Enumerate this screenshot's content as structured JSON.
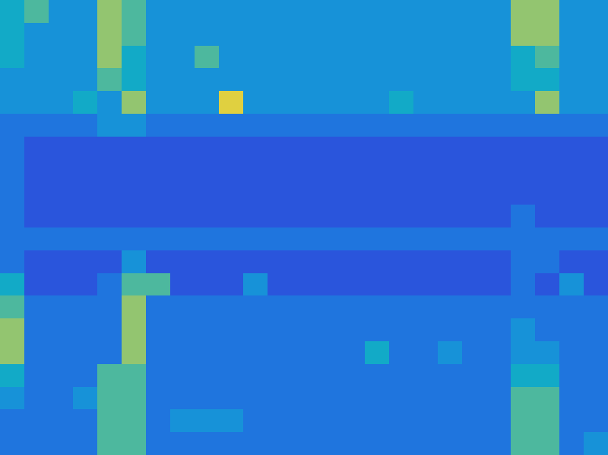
{
  "chart_data": {
    "type": "heatmap",
    "tick_labels": false,
    "grid": false,
    "cells": [
      [
        5,
        6,
        4,
        4,
        7,
        6,
        4,
        4,
        4,
        4,
        4,
        4,
        4,
        4,
        4,
        4,
        4,
        4,
        4,
        4,
        4,
        7,
        7,
        4,
        4
      ],
      [
        5,
        4,
        4,
        4,
        7,
        6,
        4,
        4,
        4,
        4,
        4,
        4,
        4,
        4,
        4,
        4,
        4,
        4,
        4,
        4,
        4,
        7,
        7,
        4,
        4
      ],
      [
        5,
        4,
        4,
        4,
        7,
        5,
        4,
        4,
        6,
        4,
        4,
        4,
        4,
        4,
        4,
        4,
        4,
        4,
        4,
        4,
        4,
        5,
        6,
        4,
        4
      ],
      [
        4,
        4,
        4,
        4,
        6,
        5,
        4,
        4,
        4,
        4,
        4,
        4,
        4,
        4,
        4,
        4,
        4,
        4,
        4,
        4,
        4,
        5,
        5,
        4,
        4
      ],
      [
        4,
        4,
        4,
        5,
        4,
        7,
        4,
        4,
        4,
        8,
        4,
        4,
        4,
        4,
        4,
        4,
        5,
        4,
        4,
        4,
        4,
        4,
        7,
        4,
        4
      ],
      [
        3,
        3,
        3,
        3,
        4,
        4,
        3,
        3,
        3,
        3,
        3,
        3,
        3,
        3,
        3,
        3,
        3,
        3,
        3,
        3,
        3,
        3,
        3,
        3,
        3
      ],
      [
        3,
        2,
        2,
        2,
        2,
        2,
        2,
        2,
        2,
        2,
        2,
        2,
        2,
        2,
        2,
        2,
        2,
        2,
        2,
        2,
        2,
        2,
        2,
        2,
        2
      ],
      [
        3,
        2,
        2,
        2,
        2,
        2,
        2,
        2,
        2,
        2,
        2,
        2,
        2,
        2,
        2,
        2,
        2,
        2,
        2,
        2,
        2,
        2,
        2,
        2,
        2
      ],
      [
        3,
        2,
        2,
        2,
        2,
        2,
        2,
        2,
        2,
        2,
        2,
        2,
        2,
        2,
        2,
        2,
        2,
        2,
        2,
        2,
        2,
        2,
        2,
        2,
        2
      ],
      [
        3,
        2,
        2,
        2,
        2,
        2,
        2,
        2,
        2,
        2,
        2,
        2,
        2,
        2,
        2,
        2,
        2,
        2,
        2,
        2,
        2,
        3,
        2,
        2,
        2
      ],
      [
        3,
        3,
        3,
        3,
        3,
        3,
        3,
        3,
        3,
        3,
        3,
        3,
        3,
        3,
        3,
        3,
        3,
        3,
        3,
        3,
        3,
        3,
        3,
        3,
        3
      ],
      [
        3,
        2,
        2,
        2,
        2,
        4,
        2,
        2,
        2,
        2,
        2,
        2,
        2,
        2,
        2,
        2,
        2,
        2,
        2,
        2,
        2,
        3,
        3,
        2,
        2
      ],
      [
        5,
        2,
        2,
        2,
        3,
        6,
        6,
        2,
        2,
        2,
        4,
        2,
        2,
        2,
        2,
        2,
        2,
        2,
        2,
        2,
        2,
        3,
        2,
        4,
        2
      ],
      [
        6,
        3,
        3,
        3,
        3,
        7,
        3,
        3,
        3,
        3,
        3,
        3,
        3,
        3,
        3,
        3,
        3,
        3,
        3,
        3,
        3,
        3,
        3,
        3,
        3
      ],
      [
        7,
        3,
        3,
        3,
        3,
        7,
        3,
        3,
        3,
        3,
        3,
        3,
        3,
        3,
        3,
        3,
        3,
        3,
        3,
        3,
        3,
        4,
        3,
        3,
        3
      ],
      [
        7,
        3,
        3,
        3,
        3,
        7,
        3,
        3,
        3,
        3,
        3,
        3,
        3,
        3,
        3,
        5,
        3,
        3,
        4,
        3,
        3,
        4,
        4,
        3,
        3
      ],
      [
        5,
        3,
        3,
        3,
        6,
        6,
        3,
        3,
        3,
        3,
        3,
        3,
        3,
        3,
        3,
        3,
        3,
        3,
        3,
        3,
        3,
        5,
        5,
        3,
        3
      ],
      [
        4,
        3,
        3,
        4,
        6,
        6,
        3,
        3,
        3,
        3,
        3,
        3,
        3,
        3,
        3,
        3,
        3,
        3,
        3,
        3,
        3,
        6,
        6,
        3,
        3
      ],
      [
        3,
        3,
        3,
        3,
        6,
        6,
        3,
        4,
        4,
        4,
        3,
        3,
        3,
        3,
        3,
        3,
        3,
        3,
        3,
        3,
        3,
        6,
        6,
        3,
        3
      ],
      [
        3,
        3,
        3,
        3,
        6,
        6,
        3,
        3,
        3,
        3,
        3,
        3,
        3,
        3,
        3,
        3,
        3,
        3,
        3,
        3,
        3,
        6,
        6,
        3,
        4
      ]
    ]
  }
}
